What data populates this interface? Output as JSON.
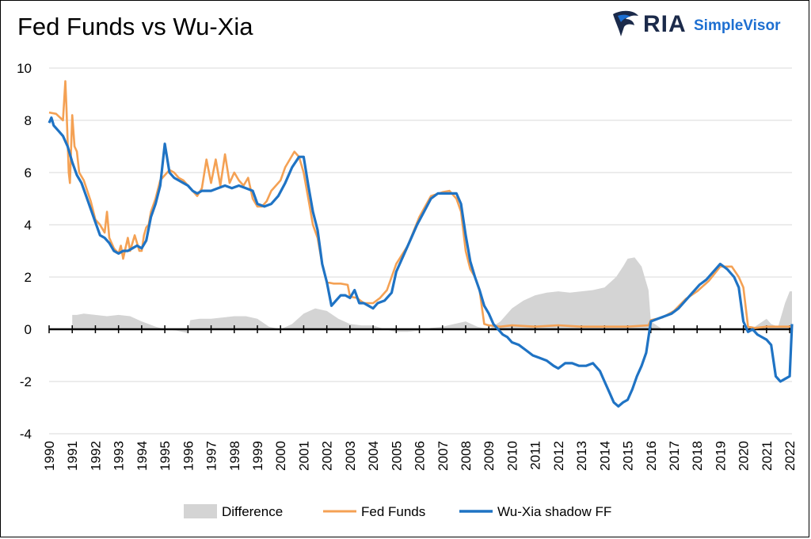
{
  "title": "Fed Funds vs Wu-Xia",
  "logo": {
    "brand": "RIA",
    "product": "SimpleVisor",
    "icon": "eagle-icon"
  },
  "colors": {
    "difference": "#d4d4d4",
    "fed_funds": "#f4a154",
    "wu_xia": "#1f73c4",
    "brand_dark": "#1b2a4a",
    "brand_blue": "#1d6fd1"
  },
  "chart_data": {
    "type": "line",
    "title": "Fed Funds vs Wu-Xia",
    "xlabel": "",
    "ylabel": "",
    "xlim": [
      1990,
      2022.1
    ],
    "ylim": [
      -4,
      10
    ],
    "y_ticks": [
      -4,
      -2,
      0,
      2,
      4,
      6,
      8,
      10
    ],
    "x_ticks": [
      "1990",
      "1991",
      "1992",
      "1993",
      "1994",
      "1995",
      "1996",
      "1997",
      "1998",
      "1999",
      "2000",
      "2001",
      "2002",
      "2003",
      "2004",
      "2005",
      "2006",
      "2007",
      "2008",
      "2009",
      "2010",
      "2011",
      "2012",
      "2013",
      "2014",
      "2015",
      "2016",
      "2017",
      "2018",
      "2019",
      "2020",
      "2021",
      "2022"
    ],
    "grid": "horizontal",
    "legend": "bottom",
    "series": [
      {
        "name": "Difference",
        "style": "area",
        "x": [
          1991.0,
          1991.2,
          1991.5,
          1992.0,
          1992.5,
          1993.0,
          1993.5,
          1994.0,
          1994.3,
          1994.6,
          1995.0,
          1995.5,
          1996.0,
          1996.1,
          1996.5,
          1997.0,
          1997.5,
          1998.0,
          1998.5,
          1999.0,
          1999.5,
          2000.0,
          2000.5,
          2001.0,
          2001.5,
          2002.0,
          2002.5,
          2003.0,
          2003.5,
          2004.0,
          2004.5,
          2005.0,
          2005.5,
          2006.0,
          2006.5,
          2007.0,
          2007.5,
          2008.0,
          2008.5,
          2009.0,
          2009.5,
          2010.0,
          2010.5,
          2011.0,
          2011.5,
          2012.0,
          2012.5,
          2013.0,
          2013.5,
          2014.0,
          2014.5,
          2014.8,
          2015.0,
          2015.3,
          2015.6,
          2015.9,
          2016.0,
          2016.5,
          2017.0,
          2017.5,
          2018.0,
          2018.5,
          2019.0,
          2019.5,
          2020.0,
          2020.5,
          2021.0,
          2021.2,
          2021.5,
          2021.8,
          2022.0,
          2022.1
        ],
        "y": [
          0.55,
          0.55,
          0.6,
          0.55,
          0.5,
          0.55,
          0.5,
          0.3,
          0.2,
          0.1,
          0.0,
          -0.05,
          -0.15,
          0.35,
          0.4,
          0.4,
          0.45,
          0.5,
          0.5,
          0.4,
          0.1,
          0.0,
          0.2,
          0.6,
          0.8,
          0.7,
          0.4,
          0.2,
          0.15,
          0.15,
          0.0,
          -0.1,
          -0.1,
          -0.05,
          0.05,
          0.1,
          0.2,
          0.3,
          0.1,
          0.0,
          0.3,
          0.8,
          1.1,
          1.3,
          1.4,
          1.45,
          1.4,
          1.45,
          1.5,
          1.6,
          2.0,
          2.4,
          2.7,
          2.75,
          2.4,
          1.5,
          0.3,
          0.0,
          0.05,
          0.0,
          0.0,
          0.0,
          0.0,
          0.0,
          0.0,
          0.1,
          0.4,
          0.2,
          0.1,
          1.0,
          1.45,
          1.45
        ]
      },
      {
        "name": "Fed Funds",
        "style": "line",
        "x": [
          1990.0,
          1990.3,
          1990.6,
          1990.7,
          1990.75,
          1990.85,
          1990.9,
          1991.0,
          1991.1,
          1991.2,
          1991.3,
          1991.5,
          1991.8,
          1992.0,
          1992.2,
          1992.4,
          1992.5,
          1992.6,
          1992.7,
          1992.8,
          1993.0,
          1993.1,
          1993.2,
          1993.3,
          1993.4,
          1993.5,
          1993.7,
          1993.9,
          1994.0,
          1994.1,
          1994.2,
          1994.3,
          1994.4,
          1994.6,
          1994.8,
          1995.0,
          1995.2,
          1995.4,
          1995.6,
          1995.8,
          1996.0,
          1996.2,
          1996.4,
          1996.6,
          1996.8,
          1997.0,
          1997.2,
          1997.4,
          1997.6,
          1997.8,
          1998.0,
          1998.2,
          1998.4,
          1998.6,
          1998.8,
          1999.0,
          1999.2,
          1999.4,
          1999.6,
          1999.8,
          2000.0,
          2000.2,
          2000.4,
          2000.6,
          2000.8,
          2001.0,
          2001.2,
          2001.4,
          2001.6,
          2001.8,
          2002.0,
          2002.3,
          2002.6,
          2002.9,
          2003.0,
          2003.3,
          2003.6,
          2003.9,
          2004.0,
          2004.3,
          2004.6,
          2005.0,
          2005.5,
          2006.0,
          2006.5,
          2007.0,
          2007.3,
          2007.6,
          2007.8,
          2008.0,
          2008.2,
          2008.4,
          2008.6,
          2008.8,
          2009.0,
          2009.5,
          2010.0,
          2011.0,
          2012.0,
          2013.0,
          2014.0,
          2015.0,
          2015.9,
          2016.0,
          2016.5,
          2017.0,
          2017.5,
          2018.0,
          2018.5,
          2019.0,
          2019.5,
          2019.8,
          2020.0,
          2020.2,
          2020.5,
          2021.0,
          2021.5,
          2022.0,
          2022.1
        ],
        "y": [
          8.3,
          8.25,
          8.0,
          9.5,
          8.5,
          6.0,
          5.6,
          8.2,
          7.0,
          6.8,
          6.0,
          5.7,
          4.9,
          4.2,
          4.0,
          3.7,
          4.5,
          3.5,
          3.3,
          3.1,
          2.9,
          3.2,
          2.7,
          3.1,
          3.5,
          3.0,
          3.6,
          3.0,
          3.0,
          3.6,
          3.9,
          4.0,
          4.5,
          5.0,
          5.7,
          5.9,
          6.1,
          6.0,
          5.8,
          5.7,
          5.5,
          5.3,
          5.1,
          5.4,
          6.5,
          5.6,
          6.5,
          5.5,
          6.7,
          5.6,
          6.0,
          5.7,
          5.5,
          5.8,
          5.0,
          4.7,
          4.7,
          4.9,
          5.3,
          5.5,
          5.7,
          6.2,
          6.5,
          6.8,
          6.6,
          6.0,
          5.0,
          4.0,
          3.5,
          2.5,
          1.8,
          1.75,
          1.75,
          1.7,
          1.25,
          1.2,
          1.0,
          1.0,
          1.0,
          1.2,
          1.5,
          2.5,
          3.2,
          4.3,
          5.1,
          5.25,
          5.3,
          5.0,
          4.5,
          3.0,
          2.3,
          2.0,
          1.5,
          0.2,
          0.15,
          0.1,
          0.15,
          0.1,
          0.15,
          0.1,
          0.1,
          0.1,
          0.15,
          0.35,
          0.45,
          0.7,
          1.15,
          1.45,
          1.85,
          2.4,
          2.4,
          2.0,
          1.6,
          0.1,
          0.05,
          0.1,
          0.1,
          0.1,
          0.1
        ]
      },
      {
        "name": "Wu-Xia shadow FF",
        "style": "line",
        "x": [
          1990.0,
          1990.1,
          1990.2,
          1990.4,
          1990.6,
          1990.8,
          1991.0,
          1991.2,
          1991.4,
          1991.6,
          1991.8,
          1992.0,
          1992.2,
          1992.4,
          1992.6,
          1992.8,
          1993.0,
          1993.2,
          1993.4,
          1993.6,
          1993.8,
          1994.0,
          1994.2,
          1994.4,
          1994.6,
          1994.8,
          1995.0,
          1995.2,
          1995.4,
          1995.6,
          1995.8,
          1996.0,
          1996.2,
          1996.4,
          1996.6,
          1996.8,
          1997.0,
          1997.3,
          1997.6,
          1997.9,
          1998.2,
          1998.5,
          1998.8,
          1999.0,
          1999.3,
          1999.6,
          1999.9,
          2000.2,
          2000.5,
          2000.8,
          2001.0,
          2001.2,
          2001.4,
          2001.6,
          2001.8,
          2002.0,
          2002.2,
          2002.4,
          2002.6,
          2002.8,
          2003.0,
          2003.2,
          2003.4,
          2003.6,
          2003.8,
          2004.0,
          2004.2,
          2004.5,
          2004.8,
          2005.0,
          2005.3,
          2005.6,
          2005.9,
          2006.2,
          2006.5,
          2006.8,
          2007.0,
          2007.3,
          2007.6,
          2007.8,
          2008.0,
          2008.2,
          2008.4,
          2008.6,
          2008.8,
          2009.0,
          2009.2,
          2009.4,
          2009.6,
          2009.8,
          2010.0,
          2010.3,
          2010.6,
          2010.9,
          2011.2,
          2011.5,
          2011.8,
          2012.0,
          2012.3,
          2012.6,
          2012.9,
          2013.2,
          2013.5,
          2013.8,
          2014.0,
          2014.2,
          2014.4,
          2014.6,
          2014.8,
          2015.0,
          2015.2,
          2015.4,
          2015.6,
          2015.8,
          2016.0,
          2016.3,
          2016.6,
          2016.9,
          2017.2,
          2017.5,
          2017.8,
          2018.1,
          2018.4,
          2018.7,
          2019.0,
          2019.3,
          2019.6,
          2019.8,
          2020.0,
          2020.2,
          2020.4,
          2020.6,
          2020.8,
          2021.0,
          2021.2,
          2021.4,
          2021.6,
          2021.8,
          2022.0,
          2022.1
        ],
        "y": [
          7.9,
          8.1,
          7.8,
          7.6,
          7.4,
          7.0,
          6.4,
          5.9,
          5.6,
          5.1,
          4.6,
          4.1,
          3.6,
          3.5,
          3.3,
          3.0,
          2.9,
          3.0,
          3.0,
          3.1,
          3.2,
          3.1,
          3.4,
          4.3,
          4.8,
          5.5,
          7.1,
          6.0,
          5.8,
          5.7,
          5.6,
          5.5,
          5.3,
          5.2,
          5.3,
          5.3,
          5.3,
          5.4,
          5.5,
          5.4,
          5.5,
          5.4,
          5.3,
          4.8,
          4.7,
          4.8,
          5.1,
          5.6,
          6.2,
          6.6,
          6.6,
          5.5,
          4.5,
          3.8,
          2.5,
          1.8,
          0.9,
          1.1,
          1.3,
          1.3,
          1.2,
          1.5,
          1.0,
          1.0,
          0.9,
          0.8,
          1.0,
          1.1,
          1.4,
          2.2,
          2.8,
          3.4,
          4.0,
          4.5,
          5.0,
          5.2,
          5.2,
          5.2,
          5.2,
          4.8,
          3.6,
          2.6,
          2.0,
          1.5,
          0.9,
          0.6,
          0.2,
          0.0,
          -0.2,
          -0.3,
          -0.5,
          -0.6,
          -0.8,
          -1.0,
          -1.1,
          -1.2,
          -1.4,
          -1.5,
          -1.3,
          -1.3,
          -1.4,
          -1.4,
          -1.3,
          -1.6,
          -2.0,
          -2.4,
          -2.8,
          -2.95,
          -2.8,
          -2.7,
          -2.3,
          -1.8,
          -1.4,
          -0.9,
          0.3,
          0.4,
          0.5,
          0.6,
          0.8,
          1.1,
          1.4,
          1.7,
          1.9,
          2.2,
          2.5,
          2.3,
          2.0,
          1.6,
          0.3,
          -0.1,
          0.0,
          -0.2,
          -0.3,
          -0.4,
          -0.6,
          -1.8,
          -2.0,
          -1.9,
          -1.8,
          0.2
        ]
      }
    ]
  }
}
